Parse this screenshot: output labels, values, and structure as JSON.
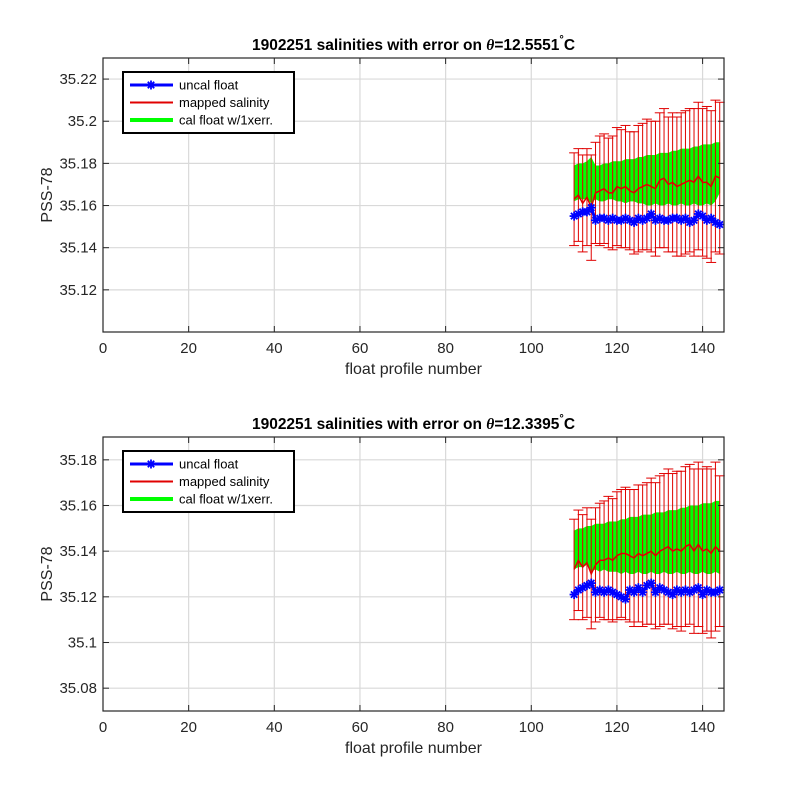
{
  "chart_data": [
    {
      "type": "line",
      "title_prefix": "1902251 salinities with error on ",
      "title_theta": "θ",
      "title_value": "=12.5551",
      "title_unit": "C",
      "xlabel": "float profile number",
      "ylabel": "PSS-78",
      "xlim": [
        0,
        145
      ],
      "ylim": [
        35.1,
        35.23
      ],
      "xticks": [
        0,
        20,
        40,
        60,
        80,
        100,
        120,
        140
      ],
      "xtick_labels": [
        "0",
        "20",
        "40",
        "60",
        "80",
        "100",
        "120",
        "140"
      ],
      "yticks": [
        35.12,
        35.14,
        35.16,
        35.18,
        35.2,
        35.22
      ],
      "ytick_labels": [
        "35.12",
        "35.14",
        "35.16",
        "35.18",
        "35.2",
        "35.22"
      ],
      "grid": true,
      "legend_position": "top-left",
      "colors": {
        "uncal": "#0000ff",
        "mapped": "#e00000",
        "cal_band": "#00ff00",
        "grid": "#d9d9d9"
      },
      "series": [
        {
          "name": "uncal float",
          "x": [
            110,
            111,
            112,
            113,
            114,
            115,
            116,
            117,
            118,
            119,
            120,
            121,
            122,
            123,
            124,
            125,
            126,
            127,
            128,
            129,
            130,
            131,
            132,
            133,
            134,
            135,
            136,
            137,
            138,
            139,
            140,
            141,
            142,
            143,
            144
          ],
          "values": [
            35.155,
            35.156,
            35.157,
            35.157,
            35.159,
            35.153,
            35.154,
            35.154,
            35.153,
            35.154,
            35.153,
            35.153,
            35.154,
            35.153,
            35.152,
            35.154,
            35.153,
            35.154,
            35.156,
            35.153,
            35.154,
            35.153,
            35.153,
            35.154,
            35.154,
            35.153,
            35.154,
            35.152,
            35.153,
            35.156,
            35.155,
            35.153,
            35.154,
            35.152,
            35.151
          ]
        },
        {
          "name": "mapped salinity",
          "x": [
            110,
            111,
            112,
            113,
            114,
            115,
            116,
            117,
            118,
            119,
            120,
            121,
            122,
            123,
            124,
            125,
            126,
            127,
            128,
            129,
            130,
            131,
            132,
            133,
            134,
            135,
            136,
            137,
            138,
            139,
            140,
            141,
            142,
            143,
            144
          ],
          "values": [
            35.163,
            35.165,
            35.161,
            35.164,
            35.159,
            35.166,
            35.167,
            35.168,
            35.166,
            35.166,
            35.169,
            35.168,
            35.169,
            35.167,
            35.166,
            35.168,
            35.169,
            35.17,
            35.169,
            35.168,
            35.172,
            35.173,
            35.17,
            35.171,
            35.169,
            35.17,
            35.171,
            35.172,
            35.171,
            35.174,
            35.171,
            35.171,
            35.169,
            35.174,
            35.173
          ],
          "err": [
            0.022,
            0.022,
            0.023,
            0.023,
            0.025,
            0.024,
            0.026,
            0.026,
            0.026,
            0.027,
            0.028,
            0.028,
            0.029,
            0.028,
            0.029,
            0.03,
            0.03,
            0.031,
            0.031,
            0.032,
            0.032,
            0.033,
            0.032,
            0.033,
            0.033,
            0.034,
            0.034,
            0.034,
            0.035,
            0.035,
            0.035,
            0.036,
            0.036,
            0.036,
            0.036
          ]
        },
        {
          "name": "cal float w/1xerr.",
          "x": [
            110,
            111,
            112,
            113,
            114,
            115,
            116,
            117,
            118,
            119,
            120,
            121,
            122,
            123,
            124,
            125,
            126,
            127,
            128,
            129,
            130,
            131,
            132,
            133,
            134,
            135,
            136,
            137,
            138,
            139,
            140,
            141,
            142,
            143,
            144
          ],
          "lower": [
            35.162,
            35.163,
            35.163,
            35.163,
            35.161,
            35.163,
            35.162,
            35.162,
            35.163,
            35.163,
            35.162,
            35.162,
            35.161,
            35.162,
            35.162,
            35.161,
            35.161,
            35.16,
            35.16,
            35.161,
            35.16,
            35.16,
            35.161,
            35.16,
            35.16,
            35.161,
            35.16,
            35.16,
            35.161,
            35.16,
            35.16,
            35.161,
            35.16,
            35.162,
            35.166
          ],
          "upper": [
            35.179,
            35.18,
            35.18,
            35.181,
            35.183,
            35.179,
            35.179,
            35.18,
            35.18,
            35.181,
            35.181,
            35.181,
            35.182,
            35.182,
            35.182,
            35.183,
            35.183,
            35.184,
            35.184,
            35.184,
            35.185,
            35.185,
            35.185,
            35.186,
            35.186,
            35.187,
            35.187,
            35.187,
            35.188,
            35.188,
            35.189,
            35.189,
            35.189,
            35.19,
            35.19
          ]
        }
      ]
    },
    {
      "type": "line",
      "title_prefix": "1902251 salinities with error on ",
      "title_theta": "θ",
      "title_value": "=12.3395",
      "title_unit": "C",
      "xlabel": "float profile number",
      "ylabel": "PSS-78",
      "xlim": [
        0,
        145
      ],
      "ylim": [
        35.07,
        35.19
      ],
      "xticks": [
        0,
        20,
        40,
        60,
        80,
        100,
        120,
        140
      ],
      "xtick_labels": [
        "0",
        "20",
        "40",
        "60",
        "80",
        "100",
        "120",
        "140"
      ],
      "yticks": [
        35.08,
        35.1,
        35.12,
        35.14,
        35.16,
        35.18
      ],
      "ytick_labels": [
        "35.08",
        "35.1",
        "35.12",
        "35.14",
        "35.16",
        "35.18"
      ],
      "grid": true,
      "legend_position": "top-left",
      "colors": {
        "uncal": "#0000ff",
        "mapped": "#e00000",
        "cal_band": "#00ff00",
        "grid": "#d9d9d9"
      },
      "series": [
        {
          "name": "uncal float",
          "x": [
            110,
            111,
            112,
            113,
            114,
            115,
            116,
            117,
            118,
            119,
            120,
            121,
            122,
            123,
            124,
            125,
            126,
            127,
            128,
            129,
            130,
            131,
            132,
            133,
            134,
            135,
            136,
            137,
            138,
            139,
            140,
            141,
            142,
            143,
            144
          ],
          "values": [
            35.121,
            35.123,
            35.124,
            35.125,
            35.126,
            35.122,
            35.123,
            35.122,
            35.123,
            35.122,
            35.121,
            35.12,
            35.119,
            35.123,
            35.122,
            35.124,
            35.122,
            35.125,
            35.126,
            35.122,
            35.124,
            35.123,
            35.122,
            35.121,
            35.123,
            35.122,
            35.123,
            35.122,
            35.123,
            35.124,
            35.121,
            35.123,
            35.122,
            35.122,
            35.123
          ]
        },
        {
          "name": "mapped salinity",
          "x": [
            110,
            111,
            112,
            113,
            114,
            115,
            116,
            117,
            118,
            119,
            120,
            121,
            122,
            123,
            124,
            125,
            126,
            127,
            128,
            129,
            130,
            131,
            132,
            133,
            134,
            135,
            136,
            137,
            138,
            139,
            140,
            141,
            142,
            143,
            144
          ],
          "values": [
            35.132,
            35.136,
            35.133,
            35.135,
            35.13,
            35.134,
            35.136,
            35.136,
            35.137,
            35.136,
            35.138,
            35.139,
            35.139,
            35.138,
            35.137,
            35.139,
            35.138,
            35.139,
            35.14,
            35.138,
            35.14,
            35.141,
            35.142,
            35.14,
            35.141,
            35.14,
            35.142,
            35.143,
            35.14,
            35.143,
            35.14,
            35.141,
            35.139,
            35.142,
            35.14
          ],
          "err": [
            0.022,
            0.022,
            0.023,
            0.024,
            0.024,
            0.025,
            0.025,
            0.026,
            0.027,
            0.027,
            0.028,
            0.028,
            0.029,
            0.029,
            0.03,
            0.03,
            0.031,
            0.031,
            0.032,
            0.032,
            0.033,
            0.033,
            0.034,
            0.034,
            0.034,
            0.035,
            0.035,
            0.035,
            0.036,
            0.036,
            0.036,
            0.036,
            0.037,
            0.037,
            0.033
          ]
        },
        {
          "name": "cal float w/1xerr.",
          "x": [
            110,
            111,
            112,
            113,
            114,
            115,
            116,
            117,
            118,
            119,
            120,
            121,
            122,
            123,
            124,
            125,
            126,
            127,
            128,
            129,
            130,
            131,
            132,
            133,
            134,
            135,
            136,
            137,
            138,
            139,
            140,
            141,
            142,
            143,
            144
          ],
          "lower": [
            35.132,
            35.133,
            35.133,
            35.134,
            35.131,
            35.132,
            35.131,
            35.132,
            35.131,
            35.131,
            35.131,
            35.13,
            35.131,
            35.13,
            35.13,
            35.131,
            35.13,
            35.13,
            35.131,
            35.13,
            35.13,
            35.131,
            35.13,
            35.13,
            35.131,
            35.13,
            35.13,
            35.131,
            35.13,
            35.13,
            35.131,
            35.13,
            35.13,
            35.131,
            35.13
          ],
          "upper": [
            35.149,
            35.15,
            35.15,
            35.151,
            35.151,
            35.152,
            35.152,
            35.152,
            35.153,
            35.153,
            35.153,
            35.154,
            35.154,
            35.155,
            35.155,
            35.155,
            35.156,
            35.156,
            35.156,
            35.157,
            35.157,
            35.157,
            35.158,
            35.158,
            35.158,
            35.159,
            35.159,
            35.16,
            35.16,
            35.16,
            35.161,
            35.161,
            35.161,
            35.162,
            35.162
          ]
        }
      ]
    }
  ]
}
